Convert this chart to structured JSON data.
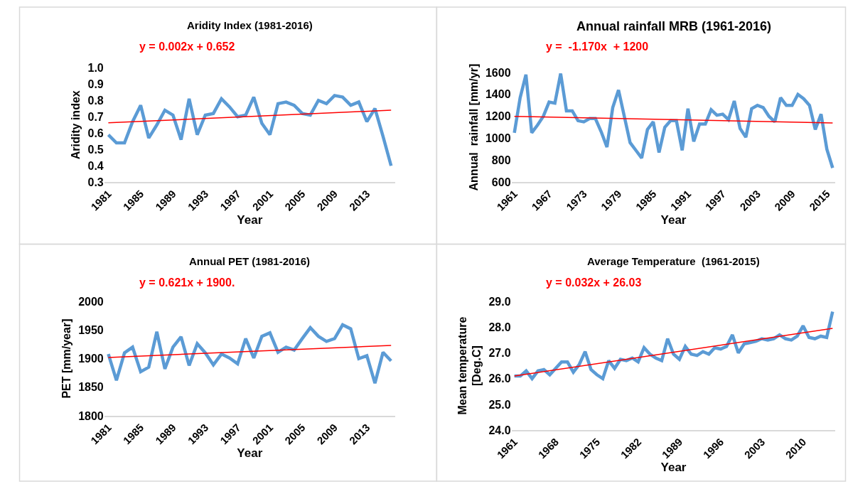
{
  "chart_data": [
    {
      "type": "line",
      "title": "Aridity Index (1981-2016)",
      "xlabel": "Year",
      "ylabel": "Aridity index",
      "annotations": [
        "y = 0.002x + 0.652"
      ],
      "x": [
        1981,
        1982,
        1983,
        1984,
        1985,
        1986,
        1987,
        1988,
        1989,
        1990,
        1991,
        1992,
        1993,
        1994,
        1995,
        1996,
        1997,
        1998,
        1999,
        2000,
        2001,
        2002,
        2003,
        2004,
        2005,
        2006,
        2007,
        2008,
        2009,
        2010,
        2011,
        2012,
        2013,
        2014,
        2015,
        2016
      ],
      "xlim": [
        1980.5,
        2016.5
      ],
      "xticks": [
        1981,
        1985,
        1989,
        1993,
        1997,
        2001,
        2005,
        2009,
        2013
      ],
      "ylim": [
        0.3,
        1.0
      ],
      "yticks": [
        {
          "value": 0.3,
          "label": "0.3"
        },
        {
          "value": 0.4,
          "label": "0.4"
        },
        {
          "value": 0.5,
          "label": "0.5"
        },
        {
          "value": 0.6,
          "label": "0.6"
        },
        {
          "value": 0.7,
          "label": "0.7"
        },
        {
          "value": 0.8,
          "label": "0.8"
        },
        {
          "value": 0.9,
          "label": "0.9"
        },
        {
          "value": 1.0,
          "label": "1.0"
        }
      ],
      "marker": "none",
      "line_style": "solid",
      "series": [
        {
          "color": "#5b9bd5",
          "values": [
            0.59,
            0.54,
            0.54,
            0.67,
            0.77,
            0.57,
            0.65,
            0.74,
            0.71,
            0.56,
            0.81,
            0.59,
            0.71,
            0.72,
            0.81,
            0.76,
            0.7,
            0.71,
            0.82,
            0.66,
            0.59,
            0.78,
            0.79,
            0.77,
            0.72,
            0.71,
            0.8,
            0.78,
            0.83,
            0.82,
            0.77,
            0.79,
            0.67,
            0.75,
            0.58,
            0.4
          ]
        },
        {
          "type": "line",
          "color": "#ff0000",
          "x": [
            1981,
            2016
          ],
          "values": [
            0.663,
            0.74
          ]
        }
      ]
    },
    {
      "type": "line",
      "title": "Annual rainfall MRB (1961-2016)",
      "xlabel": "Year",
      "ylabel": "Annual  rainfall [mm/yr]",
      "annotations": [
        "y =  -1.170x  + 1200"
      ],
      "x": [
        1961,
        1962,
        1963,
        1964,
        1965,
        1966,
        1967,
        1968,
        1969,
        1970,
        1971,
        1972,
        1973,
        1974,
        1975,
        1976,
        1977,
        1978,
        1979,
        1980,
        1981,
        1982,
        1983,
        1984,
        1985,
        1986,
        1987,
        1988,
        1989,
        1990,
        1991,
        1992,
        1993,
        1994,
        1995,
        1996,
        1997,
        1998,
        1999,
        2000,
        2001,
        2002,
        2003,
        2004,
        2005,
        2006,
        2007,
        2008,
        2009,
        2010,
        2011,
        2012,
        2013,
        2014,
        2015,
        2016
      ],
      "xlim": [
        1960.5,
        2016.5
      ],
      "xticks": [
        1961,
        1967,
        1973,
        1979,
        1985,
        1991,
        1997,
        2003,
        2009,
        2015
      ],
      "ylim": [
        600,
        1600
      ],
      "yticks": [
        600,
        800,
        1000,
        1200,
        1400,
        1600
      ],
      "marker": "none",
      "line_style": "solid",
      "series": [
        {
          "color": "#5b9bd5",
          "values": [
            1050,
            1370,
            1580,
            1050,
            1120,
            1200,
            1330,
            1320,
            1590,
            1250,
            1250,
            1160,
            1150,
            1180,
            1180,
            1060,
            920,
            1280,
            1440,
            1200,
            960,
            890,
            820,
            1080,
            1150,
            870,
            1100,
            1160,
            1160,
            890,
            1270,
            970,
            1130,
            1130,
            1260,
            1210,
            1220,
            1170,
            1340,
            1090,
            1010,
            1270,
            1300,
            1280,
            1200,
            1150,
            1370,
            1300,
            1300,
            1400,
            1360,
            1300,
            1080,
            1220,
            900,
            730
          ]
        },
        {
          "type": "line",
          "color": "#ff0000",
          "x": [
            1961,
            2016
          ],
          "values": [
            1200,
            1140
          ]
        }
      ]
    },
    {
      "type": "line",
      "title": "Annual PET (1981-2016)",
      "xlabel": "Year",
      "ylabel": "PET [mm/year]",
      "annotations": [
        "y = 0.621x + 1900."
      ],
      "x": [
        1981,
        1982,
        1983,
        1984,
        1985,
        1986,
        1987,
        1988,
        1989,
        1990,
        1991,
        1992,
        1993,
        1994,
        1995,
        1996,
        1997,
        1998,
        1999,
        2000,
        2001,
        2002,
        2003,
        2004,
        2005,
        2006,
        2007,
        2008,
        2009,
        2010,
        2011,
        2012,
        2013,
        2014,
        2015,
        2016
      ],
      "xlim": [
        1980.5,
        2016.5
      ],
      "xticks": [
        1981,
        1985,
        1989,
        1993,
        1997,
        2001,
        2005,
        2009,
        2013
      ],
      "ylim": [
        1800,
        2000
      ],
      "yticks": [
        1800,
        1850,
        1900,
        1950,
        2000
      ],
      "marker": "none",
      "line_style": "solid",
      "series": [
        {
          "color": "#5b9bd5",
          "values": [
            1908,
            1862,
            1910,
            1920,
            1877,
            1885,
            1947,
            1882,
            1920,
            1938,
            1888,
            1926,
            1910,
            1889,
            1908,
            1901,
            1891,
            1935,
            1901,
            1939,
            1945,
            1911,
            1920,
            1915,
            1935,
            1954,
            1939,
            1930,
            1935,
            1959,
            1952,
            1900,
            1905,
            1857,
            1911,
            1896
          ]
        },
        {
          "type": "line",
          "color": "#ff0000",
          "x": [
            1981,
            2016
          ],
          "values": [
            1902,
            1923
          ]
        }
      ]
    },
    {
      "type": "line",
      "title": "Average Temperature  (1961-2015)",
      "xlabel": "Year",
      "ylabel": "Mean temperature\n[Deg.C]",
      "annotations": [
        "y = 0.032x + 26.03"
      ],
      "x": [
        1961,
        1962,
        1963,
        1964,
        1965,
        1966,
        1967,
        1968,
        1969,
        1970,
        1971,
        1972,
        1973,
        1974,
        1975,
        1976,
        1977,
        1978,
        1979,
        1980,
        1981,
        1982,
        1983,
        1984,
        1985,
        1986,
        1987,
        1988,
        1989,
        1990,
        1991,
        1992,
        1993,
        1994,
        1995,
        1996,
        1997,
        1998,
        1999,
        2000,
        2001,
        2002,
        2003,
        2004,
        2005,
        2006,
        2007,
        2008,
        2009,
        2010,
        2011,
        2012,
        2013,
        2014,
        2015
      ],
      "xlim": [
        1960.5,
        2015.5
      ],
      "xticks": [
        1961,
        1968,
        1975,
        1982,
        1989,
        1996,
        2003,
        2010
      ],
      "ylim": [
        24,
        29
      ],
      "yticks": [
        {
          "value": 24,
          "label": "24.0"
        },
        {
          "value": 25,
          "label": "25.0"
        },
        {
          "value": 26,
          "label": "26.0"
        },
        {
          "value": 27,
          "label": "27.0"
        },
        {
          "value": 28,
          "label": "28.0"
        },
        {
          "value": 29,
          "label": "29.0"
        }
      ],
      "marker": "none",
      "line_style": "solid",
      "series": [
        {
          "color": "#5b9bd5",
          "values": [
            26.1,
            26.1,
            26.3,
            26.0,
            26.3,
            26.35,
            26.15,
            26.4,
            26.65,
            26.65,
            26.25,
            26.55,
            27.05,
            26.35,
            26.15,
            26.0,
            26.7,
            26.4,
            26.75,
            26.7,
            26.8,
            26.65,
            27.2,
            26.95,
            26.8,
            26.7,
            27.55,
            26.95,
            26.75,
            27.25,
            26.95,
            26.9,
            27.05,
            26.95,
            27.2,
            27.15,
            27.25,
            27.7,
            27.0,
            27.35,
            27.4,
            27.45,
            27.55,
            27.5,
            27.55,
            27.7,
            27.55,
            27.5,
            27.65,
            28.05,
            27.6,
            27.55,
            27.65,
            27.6,
            28.6
          ]
        },
        {
          "type": "line",
          "color": "#ff0000",
          "x": [
            1961,
            2015
          ],
          "values": [
            26.1,
            27.95
          ]
        }
      ]
    }
  ]
}
